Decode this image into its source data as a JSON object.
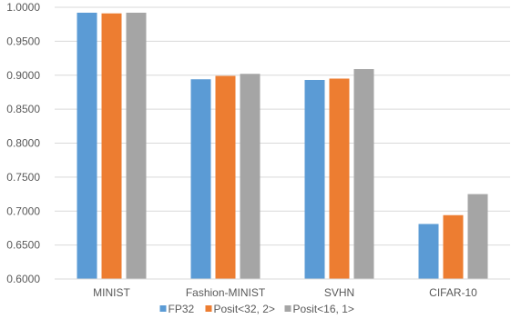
{
  "chart_data": {
    "type": "bar",
    "title": "",
    "xlabel": "",
    "ylabel": "",
    "categories": [
      "MINIST",
      "Fashion-MINIST",
      "SVHN",
      "CIFAR-10"
    ],
    "series": [
      {
        "name": "FP32",
        "color": "#5B9BD5",
        "values": [
          0.992,
          0.894,
          0.893,
          0.681
        ]
      },
      {
        "name": "Posit<32, 2>",
        "color": "#ED7D31",
        "values": [
          0.991,
          0.899,
          0.895,
          0.694
        ]
      },
      {
        "name": "Posit<16, 1>",
        "color": "#A5A5A5",
        "values": [
          0.992,
          0.902,
          0.909,
          0.725
        ]
      }
    ],
    "ylim": [
      0.6,
      1.0
    ],
    "yticks": [
      "0.6000",
      "0.6500",
      "0.7000",
      "0.7500",
      "0.8000",
      "0.8500",
      "0.9000",
      "0.9500",
      "1.0000"
    ],
    "grid": true,
    "legend_position": "bottom"
  }
}
